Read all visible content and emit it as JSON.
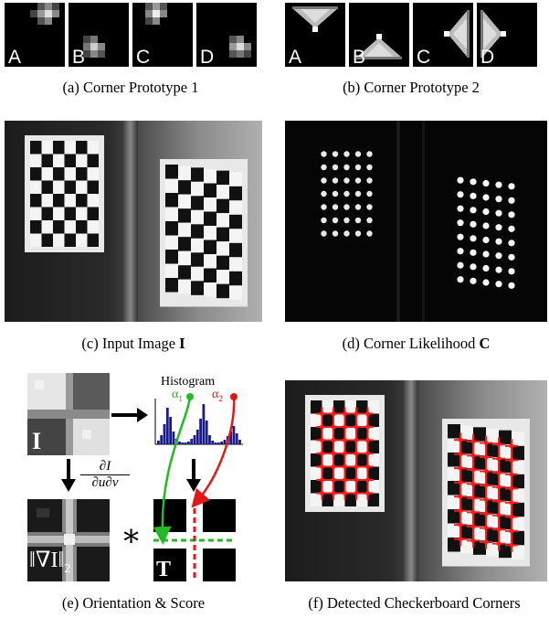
{
  "row1": {
    "a": {
      "labels": [
        "A",
        "B",
        "C",
        "D"
      ],
      "caption": "(a) Corner Prototype 1"
    },
    "b": {
      "labels": [
        "A",
        "B",
        "C",
        "D"
      ],
      "caption": "(b) Corner Prototype 2"
    }
  },
  "row2": {
    "c": {
      "caption_prefix": "(c) Input Image ",
      "caption_symbol": "I"
    },
    "d": {
      "caption_prefix": "(d) Corner Likelihood ",
      "caption_symbol": "C"
    }
  },
  "row3": {
    "e": {
      "image_label": "I",
      "histogram_title": "Histogram",
      "alpha1": "α",
      "alpha1_sub": "1",
      "alpha2": "α",
      "alpha2_sub": "2",
      "derivative_num": "∂I",
      "derivative_den": "∂u∂v",
      "grad_label": "‖∇I‖",
      "grad_sub": "2",
      "convolution_symbol": "∗",
      "template_label": "T",
      "caption": "(e) Orientation & Score"
    },
    "f": {
      "caption": "(f) Detected Checkerboard Corners"
    }
  },
  "colors": {
    "green": "#22bb22",
    "red": "#e01818",
    "histogram_bar": "#1a1a8c",
    "detected": "#ff1a1a"
  }
}
